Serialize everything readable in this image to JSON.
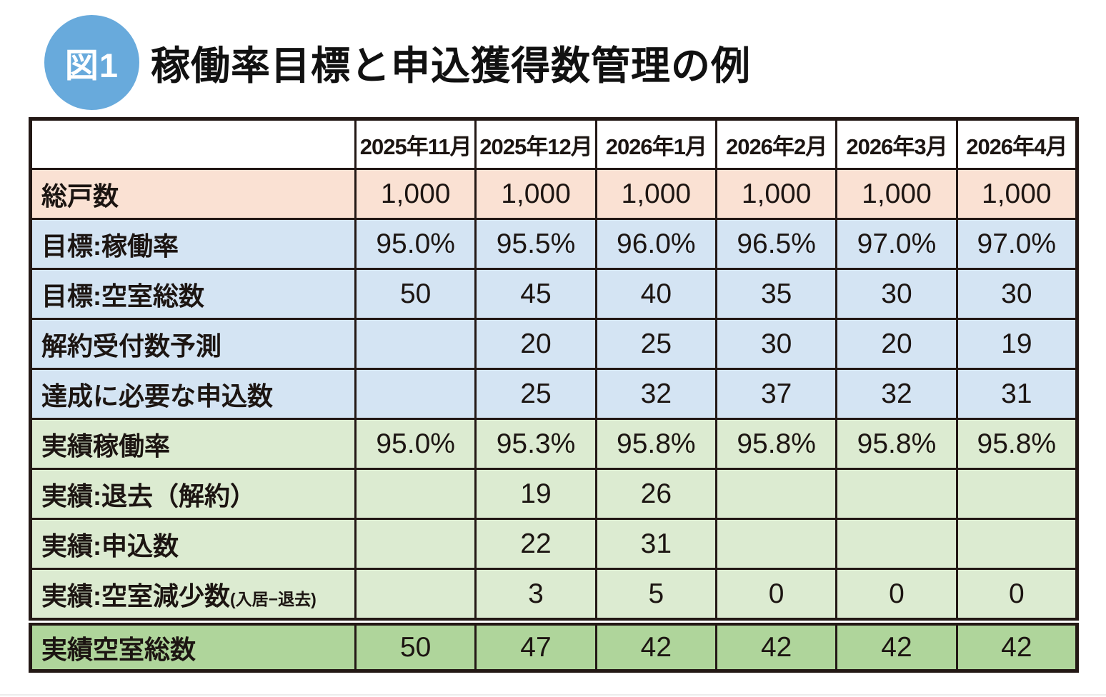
{
  "figure_label": "図1",
  "title": "稼働率目標と申込獲得数管理の例",
  "colors": {
    "badge_blue": "#68aadc",
    "row_peach": "#fae1d3",
    "row_blue": "#d4e4f3",
    "row_green": "#dcebd1",
    "row_green_dark": "#afd59b",
    "border": "#231815",
    "header_bg": "#ffffff"
  },
  "table": {
    "columns": [
      "2025年11月",
      "2025年12月",
      "2026年1月",
      "2026年2月",
      "2026年3月",
      "2026年4月"
    ],
    "rows": [
      {
        "label": "総戸数",
        "group": "base",
        "values": [
          "1,000",
          "1,000",
          "1,000",
          "1,000",
          "1,000",
          "1,000"
        ]
      },
      {
        "label": "目標:稼働率",
        "group": "target",
        "values": [
          "95.0%",
          "95.5%",
          "96.0%",
          "96.5%",
          "97.0%",
          "97.0%"
        ]
      },
      {
        "label": "目標:空室総数",
        "group": "target",
        "values": [
          "50",
          "45",
          "40",
          "35",
          "30",
          "30"
        ]
      },
      {
        "label": "解約受付数予測",
        "group": "target",
        "values": [
          "",
          "20",
          "25",
          "30",
          "20",
          "19"
        ]
      },
      {
        "label": "達成に必要な申込数",
        "group": "target",
        "values": [
          "",
          "25",
          "32",
          "37",
          "32",
          "31"
        ]
      },
      {
        "label": "実績稼働率",
        "group": "actual",
        "values": [
          "95.0%",
          "95.3%",
          "95.8%",
          "95.8%",
          "95.8%",
          "95.8%"
        ]
      },
      {
        "label": "実績:退去（解約）",
        "group": "actual",
        "values": [
          "",
          "19",
          "26",
          "",
          "",
          ""
        ]
      },
      {
        "label": "実績:申込数",
        "group": "actual",
        "values": [
          "",
          "22",
          "31",
          "",
          "",
          ""
        ]
      },
      {
        "label": "実績:空室減少数",
        "label_suffix": "(入居−退去)",
        "group": "actual",
        "values": [
          "",
          "3",
          "5",
          "0",
          "0",
          "0"
        ]
      },
      {
        "label": "実績空室総数",
        "group": "total",
        "values": [
          "50",
          "47",
          "42",
          "42",
          "42",
          "42"
        ]
      }
    ]
  },
  "chart_data": {
    "type": "table",
    "title": "稼働率目標と申込獲得数管理の例",
    "categories": [
      "2025年11月",
      "2025年12月",
      "2026年1月",
      "2026年2月",
      "2026年3月",
      "2026年4月"
    ],
    "series": [
      {
        "name": "総戸数",
        "values": [
          1000,
          1000,
          1000,
          1000,
          1000,
          1000
        ]
      },
      {
        "name": "目標:稼働率",
        "values": [
          "95.0%",
          "95.5%",
          "96.0%",
          "96.5%",
          "97.0%",
          "97.0%"
        ]
      },
      {
        "name": "目標:空室総数",
        "values": [
          50,
          45,
          40,
          35,
          30,
          30
        ]
      },
      {
        "name": "解約受付数予測",
        "values": [
          null,
          20,
          25,
          30,
          20,
          19
        ]
      },
      {
        "name": "達成に必要な申込数",
        "values": [
          null,
          25,
          32,
          37,
          32,
          31
        ]
      },
      {
        "name": "実績稼働率",
        "values": [
          "95.0%",
          "95.3%",
          "95.8%",
          "95.8%",
          "95.8%",
          "95.8%"
        ]
      },
      {
        "name": "実績:退去（解約）",
        "values": [
          null,
          19,
          26,
          null,
          null,
          null
        ]
      },
      {
        "name": "実績:申込数",
        "values": [
          null,
          22,
          31,
          null,
          null,
          null
        ]
      },
      {
        "name": "実績:空室減少数(入居−退去)",
        "values": [
          null,
          3,
          5,
          0,
          0,
          0
        ]
      },
      {
        "name": "実績空室総数",
        "values": [
          50,
          47,
          42,
          42,
          42,
          42
        ]
      }
    ]
  }
}
